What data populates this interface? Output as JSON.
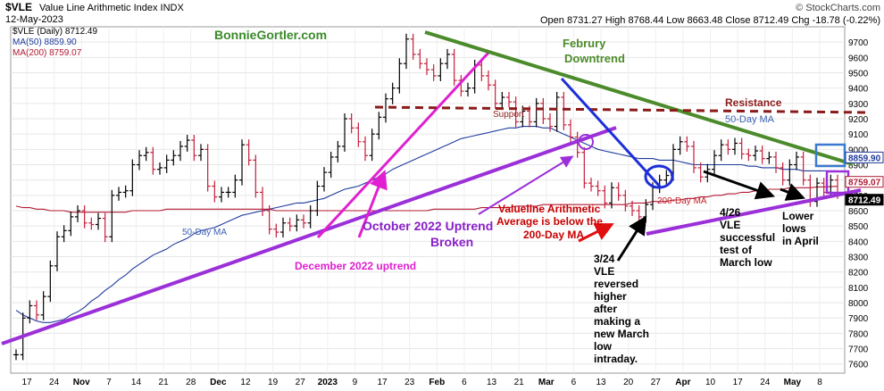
{
  "header": {
    "symbol": "$VLE",
    "name": "Value Line Arithmetic Index  INDX",
    "date": "12-May-2023",
    "credit": "© StockCharts.com",
    "ohlc": "Open 8731.27  High 8768.44  Low 8663.48  Close 8712.49  Chg -18.78 (-0.22%)",
    "legend": [
      {
        "text": "$VLE (Daily) 8712.49",
        "color": "#000000"
      },
      {
        "text": "MA(50) 8859.90",
        "color": "#1f3b9b"
      },
      {
        "text": "MA(200) 8759.07",
        "color": "#b01830"
      }
    ]
  },
  "chart_data": {
    "type": "line",
    "title": "$VLE Value Line Arithmetic Index INDX",
    "ylim": [
      7540,
      9800
    ],
    "y_ticks": [
      7600,
      7700,
      7800,
      7900,
      8000,
      8100,
      8200,
      8300,
      8400,
      8500,
      8600,
      8700,
      8800,
      8900,
      9000,
      9100,
      9200,
      9300,
      9400,
      9500,
      9600,
      9700
    ],
    "x_ticks": [
      "17",
      "24",
      "Nov",
      "7",
      "14",
      "21",
      "28",
      "Dec",
      "12",
      "19",
      "27",
      "2023",
      "9",
      "17",
      "23",
      "Feb",
      "6",
      "13",
      "21",
      "Mar",
      "6",
      "13",
      "20",
      "27",
      "Apr",
      "10",
      "17",
      "24",
      "May",
      "8"
    ],
    "series": [
      {
        "name": "$VLE (Daily)",
        "color": "#000000",
        "values": [
          7660,
          7900,
          7980,
          7920,
          8040,
          8240,
          8430,
          8470,
          8560,
          8600,
          8520,
          8510,
          8550,
          8430,
          8700,
          8720,
          8730,
          8900,
          8960,
          8980,
          8870,
          8880,
          8930,
          8960,
          9020,
          9060,
          8960,
          9000,
          8760,
          8690,
          8720,
          8720,
          8800,
          9030,
          8930,
          8720,
          8600,
          8480,
          8460,
          8520,
          8500,
          8540,
          8520,
          8600,
          8760,
          8850,
          8950,
          9020,
          9200,
          9140,
          9050,
          8960,
          9100,
          9210,
          9330,
          9400,
          9560,
          9720,
          9620,
          9560,
          9520,
          9480,
          9560,
          9620,
          9450,
          9380,
          9400,
          9550,
          9480,
          9420,
          9300,
          9340,
          9310,
          9180,
          9250,
          9180,
          9300,
          9200,
          9150,
          9340,
          9160,
          9080,
          8980,
          8780,
          8760,
          8730,
          8650,
          8750,
          8700,
          8630,
          8600,
          8560,
          8640,
          8750,
          8800,
          8830,
          9000,
          9050,
          9020,
          8880,
          8820,
          8870,
          8960,
          9030,
          9000,
          9040,
          8970,
          8960,
          8990,
          8940,
          8950,
          8880,
          8800,
          8900,
          8950,
          8800,
          8660,
          8780,
          8720,
          8800,
          8712
        ]
      },
      {
        "name": "MA(50)",
        "color": "#1f3b9b",
        "values": [
          7950,
          7920,
          7900,
          7880,
          7870,
          7870,
          7880,
          7890,
          7920,
          7940,
          7970,
          8010,
          8040,
          8080,
          8110,
          8150,
          8180,
          8220,
          8250,
          8280,
          8310,
          8330,
          8350,
          8380,
          8400,
          8420,
          8450,
          8470,
          8480,
          8490,
          8510,
          8530,
          8550,
          8570,
          8580,
          8590,
          8600,
          8610,
          8620,
          8630,
          8640,
          8650,
          8650,
          8660,
          8670,
          8680,
          8700,
          8720,
          8740,
          8750,
          8760,
          8780,
          8800,
          8820,
          8840,
          8870,
          8890,
          8910,
          8930,
          8950,
          8970,
          8990,
          9010,
          9030,
          9050,
          9070,
          9080,
          9090,
          9100,
          9110,
          9120,
          9130,
          9140,
          9140,
          9150,
          9150,
          9150,
          9140,
          9140,
          9120,
          9100,
          9080,
          9060,
          9040,
          9020,
          9000,
          8990,
          8980,
          8970,
          8960,
          8950,
          8940,
          8940,
          8940,
          8930,
          8930,
          8930,
          8920,
          8910,
          8900,
          8900,
          8900,
          8900,
          8900,
          8900,
          8900,
          8900,
          8890,
          8890,
          8880,
          8880,
          8880,
          8870,
          8870,
          8870,
          8860,
          8860,
          8860,
          8860,
          8860,
          8860
        ]
      },
      {
        "name": "MA(200)",
        "color": "#b01830",
        "values": [
          8630,
          8620,
          8620,
          8610,
          8610,
          8600,
          8600,
          8600,
          8590,
          8590,
          8590,
          8590,
          8590,
          8590,
          8590,
          8590,
          8590,
          8600,
          8600,
          8600,
          8600,
          8600,
          8610,
          8610,
          8610,
          8610,
          8610,
          8610,
          8610,
          8610,
          8610,
          8610,
          8610,
          8610,
          8610,
          8610,
          8610,
          8610,
          8600,
          8600,
          8600,
          8600,
          8600,
          8600,
          8600,
          8600,
          8600,
          8600,
          8600,
          8600,
          8600,
          8600,
          8600,
          8600,
          8600,
          8600,
          8600,
          8600,
          8600,
          8600,
          8600,
          8610,
          8610,
          8610,
          8610,
          8610,
          8610,
          8610,
          8620,
          8620,
          8620,
          8620,
          8620,
          8630,
          8630,
          8630,
          8630,
          8640,
          8640,
          8640,
          8640,
          8640,
          8640,
          8640,
          8640,
          8640,
          8640,
          8640,
          8640,
          8640,
          8650,
          8650,
          8650,
          8660,
          8660,
          8660,
          8670,
          8670,
          8680,
          8680,
          8690,
          8690,
          8700,
          8700,
          8710,
          8710,
          8720,
          8720,
          8730,
          8730,
          8740,
          8740,
          8740,
          8750,
          8750,
          8750,
          8750,
          8755,
          8755,
          8757,
          8759
        ]
      }
    ],
    "right_labels": [
      {
        "text": "8859.90",
        "value": 8859.9,
        "color": "#1f3b9b",
        "bg": "#ffffff"
      },
      {
        "text": "8759.07",
        "value": 8759.07,
        "color": "#b01830",
        "bg": "#ffffff"
      },
      {
        "text": "8712.49",
        "value": 8712.49,
        "color": "#ffffff",
        "bg": "#000000"
      }
    ],
    "annotations": [
      {
        "text": "BonnieGortler.com",
        "color": "#3a8a2a"
      },
      {
        "text": "Februry",
        "color": "#4c8b2b"
      },
      {
        "text": "Downtrend",
        "color": "#4c8b2b"
      },
      {
        "text": "Resistance",
        "color": "#8b1a1a"
      },
      {
        "text": "Support",
        "color": "#8b1a1a"
      },
      {
        "text": "50-Day MA",
        "color": "#3a5fb0"
      },
      {
        "text": "50-Day MA",
        "color": "#3a5fb0"
      },
      {
        "text": "200-Day MA",
        "color": "#c0202a"
      },
      {
        "text": "October 2022 Uptrend",
        "color": "#8a20c8"
      },
      {
        "text": "Broken",
        "color": "#8a20c8"
      },
      {
        "text": "December 2022 uptrend",
        "color": "#e020d0"
      },
      {
        "text": "Valueline Arithmetic",
        "color": "#c80000"
      },
      {
        "text": "Average is below the",
        "color": "#c80000"
      },
      {
        "text": "200-Day MA",
        "color": "#c80000"
      },
      {
        "text": "3/24",
        "color": "#000000"
      },
      {
        "text": "VLE",
        "color": "#000000"
      },
      {
        "text": "reversed",
        "color": "#000000"
      },
      {
        "text": "higher",
        "color": "#000000"
      },
      {
        "text": "after",
        "color": "#000000"
      },
      {
        "text": "making a",
        "color": "#000000"
      },
      {
        "text": "new March",
        "color": "#000000"
      },
      {
        "text": "low",
        "color": "#000000"
      },
      {
        "text": "intraday.",
        "color": "#000000"
      },
      {
        "text": "4/26",
        "color": "#000000"
      },
      {
        "text": "VLE",
        "color": "#000000"
      },
      {
        "text": "successful",
        "color": "#000000"
      },
      {
        "text": "test of",
        "color": "#000000"
      },
      {
        "text": "March low",
        "color": "#000000"
      },
      {
        "text": "Lower",
        "color": "#000000"
      },
      {
        "text": "lows",
        "color": "#000000"
      },
      {
        "text": "in April",
        "color": "#000000"
      }
    ]
  }
}
